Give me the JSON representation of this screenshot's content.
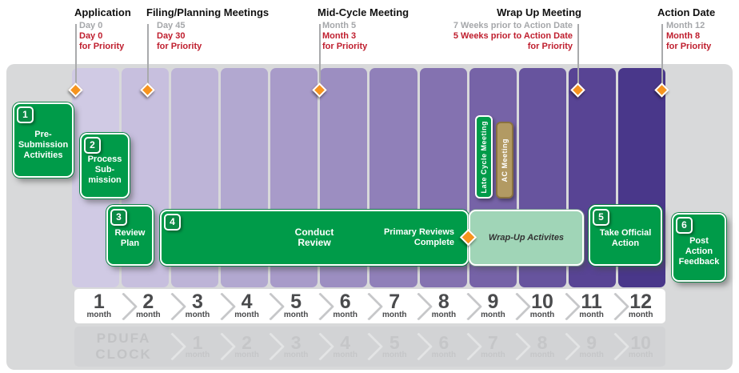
{
  "colors": {
    "step_green": "#009b49",
    "step_green_dark": "#0a8a45",
    "wrapup_green": "#a0d5b7",
    "diamond_orange": "#f7941e",
    "priority_red": "#bf1e2e",
    "standard_gray": "#a5a7aa",
    "purple_light": "#d0cae4",
    "purple_dark": "#49378a",
    "ac_meeting_tan": "#b29a63"
  },
  "milestones": [
    {
      "title": "Application",
      "sub_gray": "Day 0",
      "sub_red": "Day 0\nfor Priority"
    },
    {
      "title": "Filing/Planning Meetings",
      "sub_gray": "Day 45",
      "sub_red": "Day 30\nfor Priority"
    },
    {
      "title": "Mid-Cycle Meeting",
      "sub_gray": "Month 5",
      "sub_red": "Month 3\nfor Priority"
    },
    {
      "title": "Wrap Up Meeting",
      "sub_gray": "7 Weeks prior to Action Date",
      "sub_red": "5 Weeks prior to Action Date\nfor Priority"
    },
    {
      "title": "Action Date",
      "sub_gray": "Month 12",
      "sub_red": "Month 8\nfor Priority"
    }
  ],
  "steps": [
    {
      "num": "1",
      "label": "Pre-\nSubmission\nActivities"
    },
    {
      "num": "2",
      "label": "Process\nSub-\nmission"
    },
    {
      "num": "3",
      "label": "Review\nPlan"
    },
    {
      "num": "4",
      "label": "Conduct\nReview"
    },
    {
      "num": "5",
      "label": "Take Official\nAction"
    },
    {
      "num": "6",
      "label": "Post\nAction\nFeedback"
    }
  ],
  "conduct_bar": {
    "primary_complete": "Primary Reviews\nComplete"
  },
  "wrap_bar": {
    "label": "Wrap-Up Activites"
  },
  "meetings": [
    {
      "label": "Late Cycle Meeting"
    },
    {
      "label": "AC Meeting"
    }
  ],
  "month_scale": {
    "unit": "month",
    "numbers": [
      "1",
      "2",
      "3",
      "4",
      "5",
      "6",
      "7",
      "8",
      "9",
      "10",
      "11",
      "12"
    ]
  },
  "pdufa_clock": {
    "label": "PDUFA\nCLOCK",
    "unit": "month",
    "numbers": [
      "1",
      "2",
      "3",
      "4",
      "5",
      "6",
      "7",
      "8",
      "9",
      "10"
    ]
  }
}
